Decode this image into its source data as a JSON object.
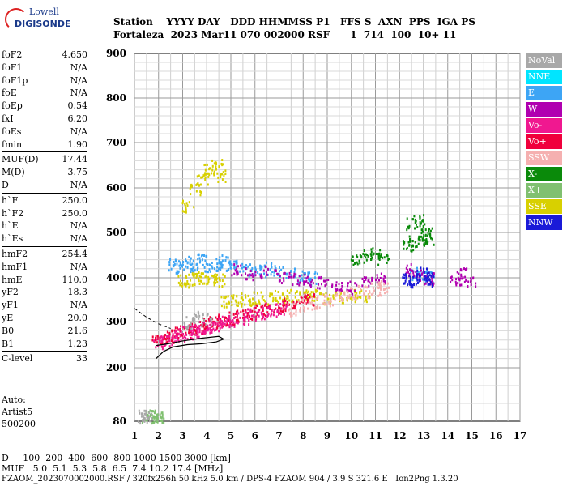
{
  "logo": {
    "line1": "Lowell",
    "line2": "DIGISONDE"
  },
  "header": {
    "line1": "Station    YYYY DAY   DDD HHMMSS P1   FFS S  AXN  PPS  IGA PS",
    "line2": "Fortaleza  2023 Mar11 070 002000 RSF      1  714  100  10+ 11"
  },
  "params": [
    {
      "k": "foF2",
      "v": "4.650"
    },
    {
      "k": "foF1",
      "v": "N/A"
    },
    {
      "k": "foF1p",
      "v": "N/A"
    },
    {
      "k": "foE",
      "v": "N/A"
    },
    {
      "k": "foEp",
      "v": "0.54"
    },
    {
      "k": "fxI",
      "v": "6.20"
    },
    {
      "k": "foEs",
      "v": "N/A"
    },
    {
      "k": "fmin",
      "v": "1.90"
    },
    {
      "sep": true
    },
    {
      "k": "MUF(D)",
      "v": "17.44"
    },
    {
      "k": "M(D)",
      "v": "3.75"
    },
    {
      "k": "D",
      "v": "N/A"
    },
    {
      "sep": true
    },
    {
      "k": "h`F",
      "v": "250.0"
    },
    {
      "k": "h`F2",
      "v": "250.0"
    },
    {
      "k": "h`E",
      "v": "N/A"
    },
    {
      "k": "h`Es",
      "v": "N/A"
    },
    {
      "sep": true
    },
    {
      "k": "hmF2",
      "v": "254.4"
    },
    {
      "k": "hmF1",
      "v": "N/A"
    },
    {
      "k": "hmE",
      "v": "110.0"
    },
    {
      "k": "yF2",
      "v": "18.3"
    },
    {
      "k": "yF1",
      "v": "N/A"
    },
    {
      "k": "yE",
      "v": "20.0"
    },
    {
      "k": "B0",
      "v": "21.6"
    },
    {
      "k": "B1",
      "v": "1.23"
    },
    {
      "sep": true
    },
    {
      "k": "C-level",
      "v": "33"
    }
  ],
  "auto": {
    "line1": "Auto:",
    "line2": "Artist5",
    "line3": "500200"
  },
  "legend": [
    {
      "label": "NoVal",
      "color": "#a8a8a8"
    },
    {
      "label": "NNE",
      "color": "#00e5ff"
    },
    {
      "label": "E",
      "color": "#3da5f5"
    },
    {
      "label": "W",
      "color": "#b000b0"
    },
    {
      "label": "Vo-",
      "color": "#f01890"
    },
    {
      "label": "Vo+",
      "color": "#f0003c"
    },
    {
      "label": "SSW",
      "color": "#f5b0b0"
    },
    {
      "label": "X-",
      "color": "#0a8a0a"
    },
    {
      "label": "X+",
      "color": "#80c070"
    },
    {
      "label": "SSE",
      "color": "#d8d000"
    },
    {
      "label": "NNW",
      "color": "#1a1ad8"
    }
  ],
  "footer": {
    "line1": "D     100  200  400  600  800 1000 1500 3000 [km]",
    "line2": "MUF   5.0  5.1  5.3  5.8  6.5  7.4 10.2 17.4 [MHz]",
    "line3": "FZAOM_2023070002000.RSF / 320fx256h 50 kHz 5.0 km / DPS-4 FZAOM 904 / 3.9 S 321.6 E   Ion2Png 1.3.20"
  },
  "chart_data": {
    "type": "scatter",
    "xlabel": "",
    "ylabel": "",
    "xlim": [
      1,
      17
    ],
    "ylim": [
      80,
      900
    ],
    "x_ticks": [
      1,
      2,
      3,
      4,
      5,
      6,
      7,
      8,
      9,
      10,
      11,
      12,
      13,
      14,
      15,
      16,
      17
    ],
    "y_ticks": [
      80,
      200,
      300,
      400,
      500,
      600,
      700,
      800,
      900
    ],
    "grid": true,
    "series": [
      {
        "name": "E",
        "color": "#3da5f5",
        "x": [
          2.6,
          2.9,
          3.2,
          3.5,
          3.8,
          4.1,
          4.4,
          4.7,
          5.0,
          5.3,
          5.8,
          6.2,
          6.6,
          7.0,
          7.5,
          8.0,
          8.4,
          12.6,
          12.9,
          13.2
        ],
        "y": [
          430,
          425,
          435,
          430,
          440,
          428,
          432,
          438,
          425,
          430,
          420,
          415,
          422,
          418,
          410,
          405,
          400,
          410,
          408,
          405
        ]
      },
      {
        "name": "SSE",
        "color": "#d8d000",
        "x": [
          3.0,
          3.3,
          3.6,
          3.9,
          4.2,
          4.5,
          4.8,
          5.2,
          5.6,
          6.0,
          6.5,
          7.0,
          7.5,
          8.0,
          8.5,
          9.0,
          9.5,
          10.0,
          10.5,
          3.2,
          3.5,
          3.8,
          4.1,
          4.4,
          4.6
        ],
        "y": [
          395,
          398,
          400,
          402,
          398,
          396,
          350,
          352,
          350,
          355,
          352,
          358,
          360,
          362,
          360,
          355,
          358,
          360,
          362,
          560,
          600,
          620,
          640,
          650,
          630
        ]
      },
      {
        "name": "Vo+",
        "color": "#f0003c",
        "x": [
          1.9,
          2.2,
          2.5,
          2.8,
          3.1,
          3.4,
          3.7,
          4.0,
          4.3,
          4.6,
          5.0,
          5.4,
          5.8,
          6.2,
          6.6,
          7.0,
          7.4,
          7.8,
          8.2
        ],
        "y": [
          260,
          265,
          270,
          275,
          280,
          285,
          290,
          295,
          300,
          305,
          310,
          315,
          320,
          325,
          330,
          335,
          340,
          345,
          350
        ]
      },
      {
        "name": "Vo-",
        "color": "#f01890",
        "x": [
          2.0,
          2.3,
          2.6,
          2.9,
          3.2,
          3.5,
          3.8,
          4.1,
          4.4,
          4.7,
          5.1,
          5.5,
          5.9,
          6.3,
          6.7,
          7.1
        ],
        "y": [
          255,
          262,
          268,
          272,
          278,
          282,
          288,
          292,
          296,
          300,
          305,
          310,
          318,
          322,
          328,
          332
        ]
      },
      {
        "name": "W",
        "color": "#b000b0",
        "x": [
          5.2,
          5.8,
          6.4,
          7.0,
          7.6,
          8.2,
          8.8,
          9.4,
          10.0,
          10.6,
          11.2,
          12.4,
          12.8,
          13.2,
          14.3,
          14.6,
          14.9
        ],
        "y": [
          420,
          410,
          415,
          405,
          400,
          395,
          390,
          385,
          380,
          390,
          400,
          420,
          410,
          400,
          400,
          410,
          395
        ]
      },
      {
        "name": "X-",
        "color": "#0a8a0a",
        "x": [
          10.2,
          10.6,
          11.0,
          11.3,
          12.3,
          12.6,
          12.9,
          13.2,
          12.5,
          12.8,
          13.1
        ],
        "y": [
          440,
          450,
          455,
          445,
          470,
          480,
          490,
          485,
          520,
          530,
          500
        ]
      },
      {
        "name": "NNW",
        "color": "#1a1ad8",
        "x": [
          12.3,
          12.6,
          12.9,
          13.2,
          13.0
        ],
        "y": [
          400,
          395,
          405,
          398,
          410
        ]
      },
      {
        "name": "SSW",
        "color": "#f5b0b0",
        "x": [
          7.5,
          8.0,
          8.5,
          9.0,
          9.5,
          10.0,
          10.5,
          11.0,
          11.3
        ],
        "y": [
          330,
          340,
          345,
          350,
          355,
          365,
          370,
          375,
          380
        ]
      },
      {
        "name": "X+",
        "color": "#80c070",
        "x": [
          1.5,
          1.7,
          1.9,
          2.0
        ],
        "y": [
          92,
          92,
          93,
          92
        ]
      },
      {
        "name": "NoVal",
        "color": "#a8a8a8",
        "x": [
          1.3,
          1.5,
          3.2,
          3.6,
          4.0
        ],
        "y": [
          92,
          92,
          300,
          310,
          305
        ]
      }
    ]
  }
}
